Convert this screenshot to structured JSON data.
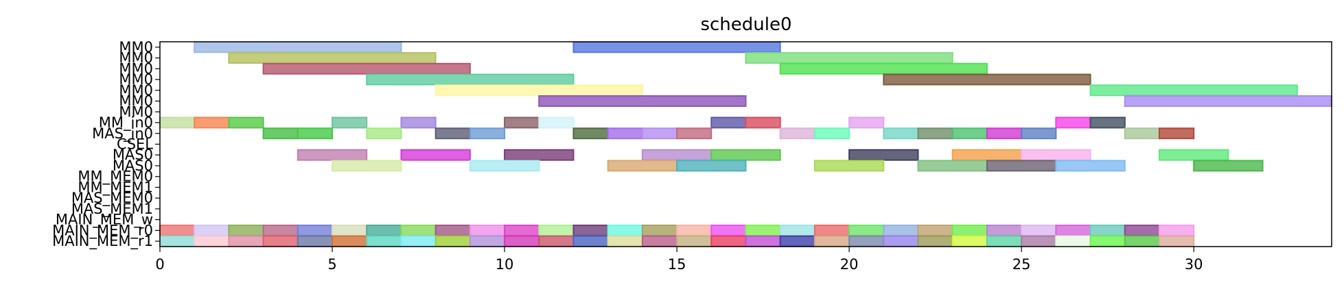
{
  "chart_data": {
    "type": "gantt",
    "title": "schedule0",
    "xlim": [
      0,
      34
    ],
    "xticks": [
      0,
      5,
      10,
      15,
      20,
      25,
      30
    ],
    "rows": [
      "MM0",
      "MM0",
      "MM0",
      "MM0",
      "MM0",
      "MM0",
      "MM0",
      "MM_in0",
      "MAS_in0",
      "CSEL",
      "MAS0",
      "MAS0",
      "MM_MEM0",
      "MM_MEM1",
      "MAS_MEM0",
      "MAS_MEM1",
      "MAIN_MEM_w",
      "MAIN_MEM_r0",
      "MAIN_MEM_r1"
    ],
    "tasks": [
      {
        "row": 0,
        "start": 1,
        "end": 7,
        "color": "#9bb8e3"
      },
      {
        "row": 0,
        "start": 12,
        "end": 18,
        "color": "#5677e0"
      },
      {
        "row": 1,
        "start": 2,
        "end": 8,
        "color": "#b5bf5e"
      },
      {
        "row": 1,
        "start": 17,
        "end": 23,
        "color": "#7cde7c"
      },
      {
        "row": 2,
        "start": 3,
        "end": 9,
        "color": "#b5566f"
      },
      {
        "row": 2,
        "start": 18,
        "end": 24,
        "color": "#4fe04f"
      },
      {
        "row": 3,
        "start": 6,
        "end": 12,
        "color": "#5ccca0"
      },
      {
        "row": 3,
        "start": 21,
        "end": 27,
        "color": "#7d5a3c"
      },
      {
        "row": 4,
        "start": 8,
        "end": 14,
        "color": "#fff5a0"
      },
      {
        "row": 4,
        "start": 27,
        "end": 33,
        "color": "#5ee88a"
      },
      {
        "row": 5,
        "start": 11,
        "end": 17,
        "color": "#8b54b8"
      },
      {
        "row": 5,
        "start": 28,
        "end": 34,
        "color": "#a68cf2"
      },
      {
        "row": 7,
        "start": 0,
        "end": 1,
        "color": "#c3e0a0"
      },
      {
        "row": 7,
        "start": 1,
        "end": 2,
        "color": "#f7834f"
      },
      {
        "row": 7,
        "start": 2,
        "end": 3,
        "color": "#55c945"
      },
      {
        "row": 7,
        "start": 5,
        "end": 6,
        "color": "#6cc4a0"
      },
      {
        "row": 7,
        "start": 7,
        "end": 8,
        "color": "#a385de"
      },
      {
        "row": 7,
        "start": 10,
        "end": 11,
        "color": "#8a6068"
      },
      {
        "row": 7,
        "start": 11,
        "end": 12,
        "color": "#d2f2fa"
      },
      {
        "row": 7,
        "start": 16,
        "end": 17,
        "color": "#5e58a8"
      },
      {
        "row": 7,
        "start": 17,
        "end": 18,
        "color": "#d84b5e"
      },
      {
        "row": 7,
        "start": 20,
        "end": 21,
        "color": "#e5a2f0"
      },
      {
        "row": 7,
        "start": 26,
        "end": 27,
        "color": "#f542e8"
      },
      {
        "row": 7,
        "start": 27,
        "end": 28,
        "color": "#445060"
      },
      {
        "row": 8,
        "start": 3,
        "end": 4,
        "color": "#46be46"
      },
      {
        "row": 8,
        "start": 4,
        "end": 5,
        "color": "#46c846"
      },
      {
        "row": 8,
        "start": 6,
        "end": 7,
        "color": "#a6ea82"
      },
      {
        "row": 8,
        "start": 8,
        "end": 9,
        "color": "#5d5d75"
      },
      {
        "row": 8,
        "start": 9,
        "end": 10,
        "color": "#6d9cd6"
      },
      {
        "row": 8,
        "start": 12,
        "end": 13,
        "color": "#4f6b3e"
      },
      {
        "row": 8,
        "start": 13,
        "end": 14,
        "color": "#a26de8"
      },
      {
        "row": 8,
        "start": 14,
        "end": 15,
        "color": "#b48cf0"
      },
      {
        "row": 8,
        "start": 15,
        "end": 16,
        "color": "#c06a80"
      },
      {
        "row": 8,
        "start": 18,
        "end": 19,
        "color": "#dcb4d8"
      },
      {
        "row": 8,
        "start": 19,
        "end": 20,
        "color": "#6afab8"
      },
      {
        "row": 8,
        "start": 21,
        "end": 22,
        "color": "#74d6c6"
      },
      {
        "row": 8,
        "start": 22,
        "end": 23,
        "color": "#6f8f6a"
      },
      {
        "row": 8,
        "start": 23,
        "end": 24,
        "color": "#4cc270"
      },
      {
        "row": 8,
        "start": 24,
        "end": 25,
        "color": "#d03ad0"
      },
      {
        "row": 8,
        "start": 25,
        "end": 26,
        "color": "#5e80c2"
      },
      {
        "row": 8,
        "start": 28,
        "end": 29,
        "color": "#a8c898"
      },
      {
        "row": 8,
        "start": 29,
        "end": 30,
        "color": "#b0483a"
      },
      {
        "row": 10,
        "start": 4,
        "end": 6,
        "color": "#c27eb0"
      },
      {
        "row": 10,
        "start": 7,
        "end": 9,
        "color": "#d43ad8"
      },
      {
        "row": 10,
        "start": 10,
        "end": 12,
        "color": "#7a3c78"
      },
      {
        "row": 10,
        "start": 14,
        "end": 16,
        "color": "#b88cce"
      },
      {
        "row": 10,
        "start": 16,
        "end": 18,
        "color": "#5cc84c"
      },
      {
        "row": 10,
        "start": 20,
        "end": 22,
        "color": "#3e3e5c"
      },
      {
        "row": 10,
        "start": 23,
        "end": 25,
        "color": "#f5a04a"
      },
      {
        "row": 10,
        "start": 25,
        "end": 27,
        "color": "#f8b0ec"
      },
      {
        "row": 10,
        "start": 29,
        "end": 31,
        "color": "#5eea7a"
      },
      {
        "row": 11,
        "start": 5,
        "end": 7,
        "color": "#d6eaa6"
      },
      {
        "row": 11,
        "start": 9,
        "end": 11,
        "color": "#a8eaf0"
      },
      {
        "row": 11,
        "start": 13,
        "end": 15,
        "color": "#d8a870"
      },
      {
        "row": 11,
        "start": 15,
        "end": 17,
        "color": "#4eb2ba"
      },
      {
        "row": 11,
        "start": 19,
        "end": 21,
        "color": "#aad850"
      },
      {
        "row": 11,
        "start": 22,
        "end": 24,
        "color": "#7ec080"
      },
      {
        "row": 11,
        "start": 24,
        "end": 26,
        "color": "#6a6270"
      },
      {
        "row": 11,
        "start": 26,
        "end": 28,
        "color": "#7fbaf2"
      },
      {
        "row": 11,
        "start": 30,
        "end": 32,
        "color": "#4ab84a"
      },
      {
        "row": 17,
        "start": 0,
        "end": 1,
        "color": "#ee7272"
      },
      {
        "row": 17,
        "start": 1,
        "end": 2,
        "color": "#d2c6f4"
      },
      {
        "row": 17,
        "start": 2,
        "end": 3,
        "color": "#8cb05a"
      },
      {
        "row": 17,
        "start": 3,
        "end": 4,
        "color": "#b86a8a"
      },
      {
        "row": 17,
        "start": 4,
        "end": 5,
        "color": "#7680da"
      },
      {
        "row": 17,
        "start": 5,
        "end": 6,
        "color": "#d6deba"
      },
      {
        "row": 17,
        "start": 6,
        "end": 7,
        "color": "#4aac98"
      },
      {
        "row": 17,
        "start": 7,
        "end": 8,
        "color": "#88da5a"
      },
      {
        "row": 17,
        "start": 8,
        "end": 9,
        "color": "#a25888"
      },
      {
        "row": 17,
        "start": 9,
        "end": 10,
        "color": "#f090e8"
      },
      {
        "row": 17,
        "start": 10,
        "end": 11,
        "color": "#dc46c8"
      },
      {
        "row": 17,
        "start": 11,
        "end": 12,
        "color": "#b0f096"
      },
      {
        "row": 17,
        "start": 12,
        "end": 13,
        "color": "#6e3e78"
      },
      {
        "row": 17,
        "start": 13,
        "end": 14,
        "color": "#6ef8e2"
      },
      {
        "row": 17,
        "start": 14,
        "end": 15,
        "color": "#a6a05e"
      },
      {
        "row": 17,
        "start": 15,
        "end": 16,
        "color": "#f8b4a6"
      },
      {
        "row": 17,
        "start": 16,
        "end": 17,
        "color": "#ee50f4"
      },
      {
        "row": 17,
        "start": 17,
        "end": 18,
        "color": "#82f050"
      },
      {
        "row": 17,
        "start": 18,
        "end": 19,
        "color": "#a0e4e4"
      },
      {
        "row": 17,
        "start": 19,
        "end": 20,
        "color": "#ec6a6a"
      },
      {
        "row": 17,
        "start": 20,
        "end": 21,
        "color": "#6ee46a"
      },
      {
        "row": 17,
        "start": 21,
        "end": 22,
        "color": "#92b4e0"
      },
      {
        "row": 17,
        "start": 22,
        "end": 23,
        "color": "#c0a470"
      },
      {
        "row": 17,
        "start": 23,
        "end": 24,
        "color": "#72ec4e"
      },
      {
        "row": 17,
        "start": 24,
        "end": 25,
        "color": "#b882cc"
      },
      {
        "row": 17,
        "start": 25,
        "end": 26,
        "color": "#dcb8f0"
      },
      {
        "row": 17,
        "start": 26,
        "end": 27,
        "color": "#d666dc"
      },
      {
        "row": 17,
        "start": 27,
        "end": 28,
        "color": "#6acaba"
      },
      {
        "row": 17,
        "start": 28,
        "end": 29,
        "color": "#8c4a92"
      },
      {
        "row": 17,
        "start": 29,
        "end": 30,
        "color": "#f89cee"
      },
      {
        "row": 18,
        "start": 0,
        "end": 1,
        "color": "#90dcd6"
      },
      {
        "row": 18,
        "start": 1,
        "end": 2,
        "color": "#fac8d2"
      },
      {
        "row": 18,
        "start": 2,
        "end": 3,
        "color": "#de90a8"
      },
      {
        "row": 18,
        "start": 3,
        "end": 4,
        "color": "#e0606c"
      },
      {
        "row": 18,
        "start": 4,
        "end": 5,
        "color": "#6a78a2"
      },
      {
        "row": 18,
        "start": 5,
        "end": 6,
        "color": "#d07036"
      },
      {
        "row": 18,
        "start": 6,
        "end": 7,
        "color": "#5cd8c0"
      },
      {
        "row": 18,
        "start": 7,
        "end": 8,
        "color": "#7eeaf2"
      },
      {
        "row": 18,
        "start": 8,
        "end": 9,
        "color": "#9ed038"
      },
      {
        "row": 18,
        "start": 9,
        "end": 10,
        "color": "#b094da"
      },
      {
        "row": 18,
        "start": 10,
        "end": 11,
        "color": "#d23ab8"
      },
      {
        "row": 18,
        "start": 11,
        "end": 12,
        "color": "#c85668"
      },
      {
        "row": 18,
        "start": 12,
        "end": 13,
        "color": "#4a64c2"
      },
      {
        "row": 18,
        "start": 13,
        "end": 14,
        "color": "#dcde9c"
      },
      {
        "row": 18,
        "start": 14,
        "end": 15,
        "color": "#b85e8a"
      },
      {
        "row": 18,
        "start": 15,
        "end": 16,
        "color": "#c4b080"
      },
      {
        "row": 18,
        "start": 16,
        "end": 17,
        "color": "#ea3e62"
      },
      {
        "row": 18,
        "start": 17,
        "end": 18,
        "color": "#c050d2"
      },
      {
        "row": 18,
        "start": 18,
        "end": 19,
        "color": "#3e3ea8"
      },
      {
        "row": 18,
        "start": 19,
        "end": 20,
        "color": "#d8a884"
      },
      {
        "row": 18,
        "start": 20,
        "end": 21,
        "color": "#7a8aa8"
      },
      {
        "row": 18,
        "start": 21,
        "end": 22,
        "color": "#9684ea"
      },
      {
        "row": 18,
        "start": 22,
        "end": 23,
        "color": "#9a9c58"
      },
      {
        "row": 18,
        "start": 23,
        "end": 24,
        "color": "#d4f83e"
      },
      {
        "row": 18,
        "start": 24,
        "end": 25,
        "color": "#5ed4a8"
      },
      {
        "row": 18,
        "start": 25,
        "end": 26,
        "color": "#a87aa6"
      },
      {
        "row": 18,
        "start": 26,
        "end": 27,
        "color": "#e6f8e4"
      },
      {
        "row": 18,
        "start": 27,
        "end": 28,
        "color": "#6af250"
      },
      {
        "row": 18,
        "start": 28,
        "end": 29,
        "color": "#58c84a"
      },
      {
        "row": 18,
        "start": 29,
        "end": 30,
        "color": "#dcae9c"
      }
    ]
  }
}
